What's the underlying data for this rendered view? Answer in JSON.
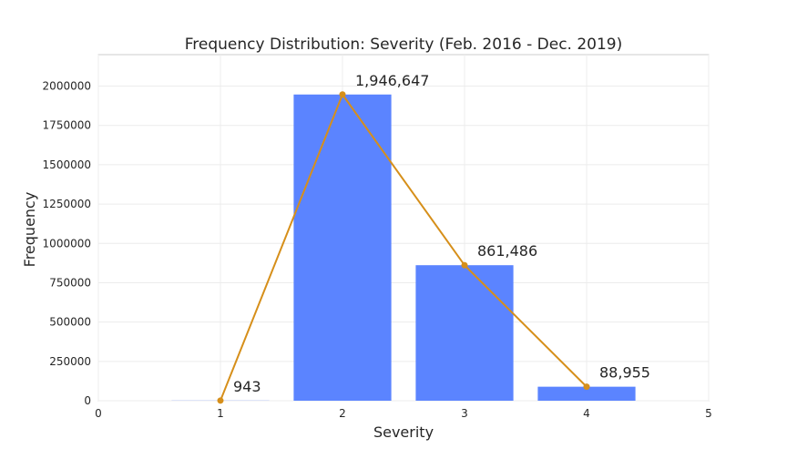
{
  "chart_data": {
    "type": "bar",
    "title": "Frequency Distribution: Severity (Feb. 2016 - Dec. 2019)",
    "xlabel": "Severity",
    "ylabel": "Frequency",
    "xlim": [
      0,
      5
    ],
    "ylim": [
      0,
      2200000
    ],
    "x_ticks": [
      0,
      1,
      2,
      3,
      4,
      5
    ],
    "y_ticks": [
      0,
      250000,
      500000,
      750000,
      1000000,
      1250000,
      1500000,
      1750000,
      2000000
    ],
    "grid": true,
    "bar_color": "#5b84ff",
    "line_color": "#d68f1a",
    "bars": [
      {
        "x": 1,
        "value": 943
      },
      {
        "x": 2,
        "value": 1946647
      },
      {
        "x": 3,
        "value": 861486
      },
      {
        "x": 4,
        "value": 88955
      }
    ],
    "line": {
      "x": [
        1,
        2,
        3,
        4
      ],
      "values": [
        943,
        1946647,
        861486,
        88955
      ]
    },
    "data_labels": [
      "943",
      "1,946,647",
      "861,486",
      "88,955"
    ]
  }
}
